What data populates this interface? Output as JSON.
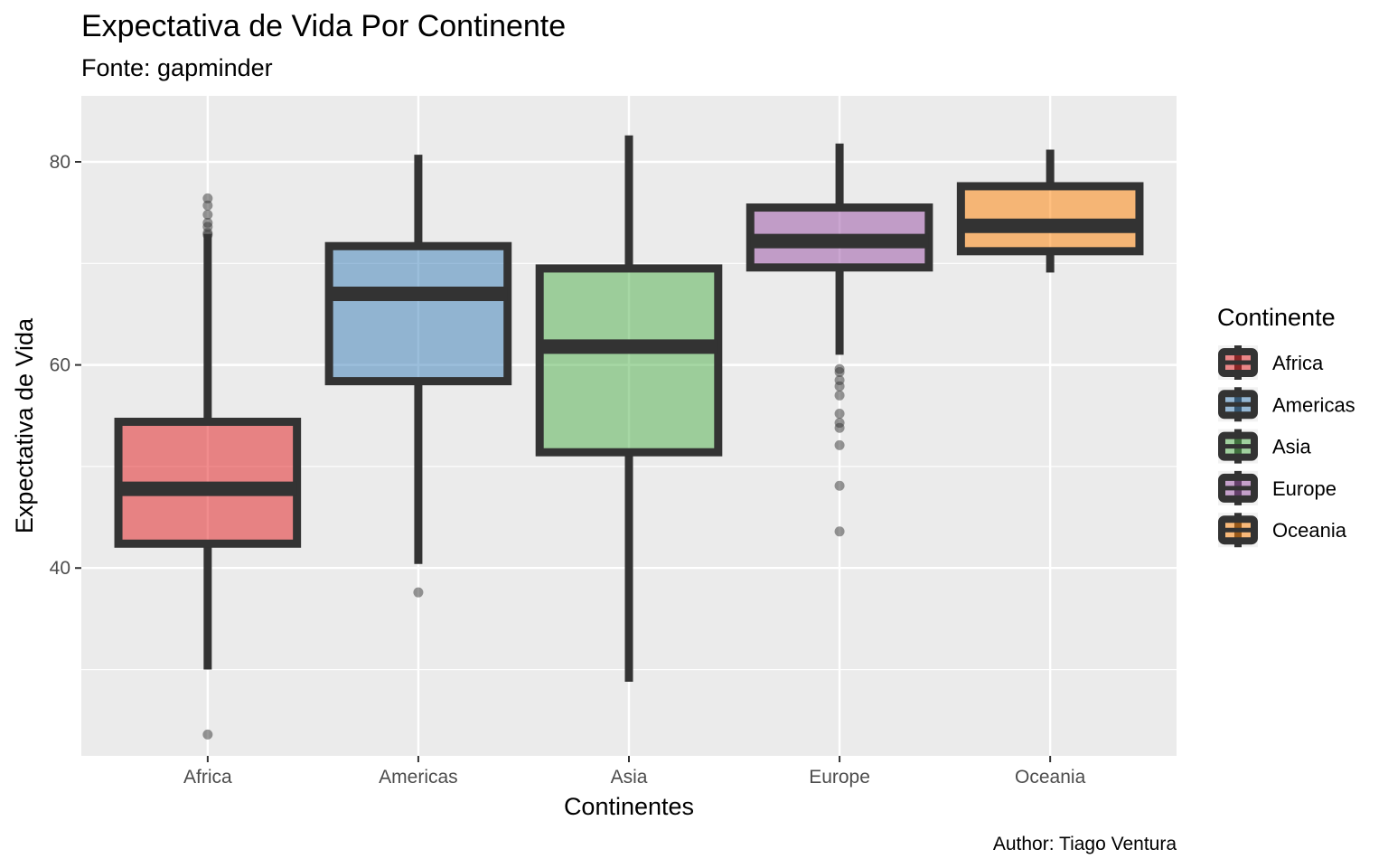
{
  "chart_data": {
    "type": "boxplot",
    "title": "Expectativa de Vida Por Continente",
    "subtitle": "Fonte: gapminder",
    "caption": "Author: Tiago Ventura",
    "xlabel": "Continentes",
    "ylabel": "Expectativa de Vida",
    "ylim": [
      21.5,
      86.5
    ],
    "yticks": [
      40,
      60,
      80
    ],
    "grid": true,
    "legend": {
      "title": "Continente",
      "position": "right"
    },
    "categories": [
      "Africa",
      "Americas",
      "Asia",
      "Europe",
      "Oceania"
    ],
    "boxes": [
      {
        "name": "Africa",
        "color": "#E41A1C",
        "whisker_low": 30.0,
        "q1": 42.4,
        "median": 47.8,
        "q3": 54.4,
        "whisker_high": 72.9,
        "outliers": [
          76.4,
          75.7,
          74.8,
          74.0,
          73.6,
          73.0,
          72.8,
          23.6
        ]
      },
      {
        "name": "Americas",
        "color": "#377EB8",
        "whisker_low": 40.4,
        "q1": 58.4,
        "median": 67.0,
        "q3": 71.7,
        "whisker_high": 80.7,
        "outliers": [
          37.6
        ]
      },
      {
        "name": "Asia",
        "color": "#4DAF4A",
        "whisker_low": 28.8,
        "q1": 51.4,
        "median": 61.8,
        "q3": 69.5,
        "whisker_high": 82.6,
        "outliers": []
      },
      {
        "name": "Europe",
        "color": "#984EA3",
        "whisker_low": 61.0,
        "q1": 69.6,
        "median": 72.2,
        "q3": 75.5,
        "whisker_high": 81.8,
        "outliers": [
          59.6,
          59.3,
          58.5,
          57.9,
          57.0,
          55.2,
          54.3,
          53.8,
          52.1,
          48.1,
          43.6
        ]
      },
      {
        "name": "Oceania",
        "color": "#FF7F00",
        "whisker_low": 69.1,
        "q1": 71.2,
        "median": 73.7,
        "q3": 77.6,
        "whisker_high": 81.2,
        "outliers": []
      }
    ]
  }
}
